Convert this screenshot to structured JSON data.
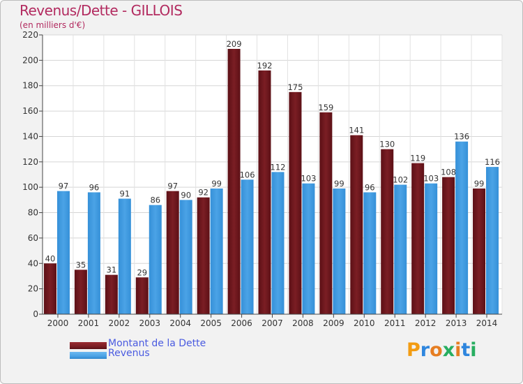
{
  "title": "Revenus/Dette - GILLOIS",
  "subtitle": "(en milliers d'€)",
  "logo_text": "Proxiti",
  "colors": {
    "dette": "#7b1e24",
    "revenus": "#4ba3e6",
    "title": "#b22a5f",
    "legend_text": "#4a5be0"
  },
  "chart_data": {
    "type": "bar",
    "categories": [
      "2000",
      "2001",
      "2002",
      "2003",
      "2004",
      "2005",
      "2006",
      "2007",
      "2008",
      "2009",
      "2010",
      "2011",
      "2012",
      "2013",
      "2014"
    ],
    "series": [
      {
        "name": "Montant de la Dette",
        "values": [
          40,
          35,
          31,
          29,
          97,
          92,
          209,
          192,
          175,
          159,
          141,
          130,
          119,
          108,
          99
        ]
      },
      {
        "name": "Revenus",
        "values": [
          97,
          96,
          91,
          86,
          90,
          99,
          106,
          112,
          103,
          99,
          96,
          102,
          103,
          136,
          116
        ]
      }
    ],
    "ylim": [
      0,
      220
    ],
    "yticks": [
      0,
      20,
      40,
      60,
      80,
      100,
      120,
      140,
      160,
      180,
      200,
      220
    ],
    "grid": true,
    "legend": "bottom-left"
  }
}
